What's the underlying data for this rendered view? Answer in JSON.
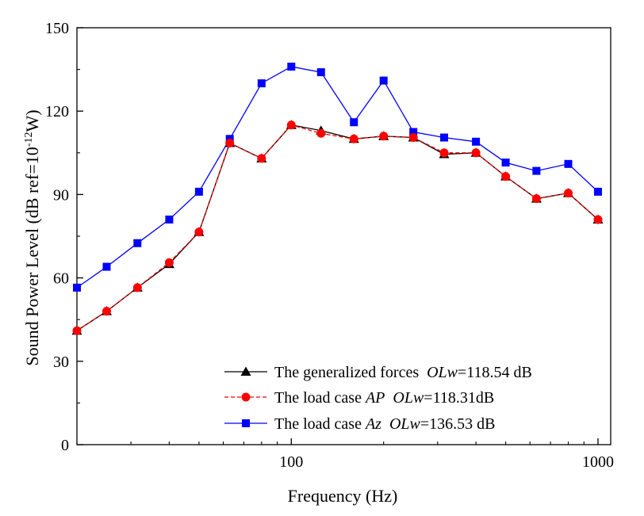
{
  "chart_data": {
    "type": "line",
    "xlabel": "Frequency (Hz)",
    "ylabel_main": "Sound Power Level (dB ref=10",
    "ylabel_exp": "-12",
    "ylabel_tail": "W)",
    "x_scale": "log",
    "xlim": [
      20,
      1100
    ],
    "ylim": [
      0,
      150
    ],
    "x_ticks": [
      100,
      1000
    ],
    "x_tick_labels": [
      "100",
      "1000"
    ],
    "y_ticks": [
      0,
      30,
      60,
      90,
      120,
      150
    ],
    "y_tick_labels": [
      "0",
      "30",
      "60",
      "90",
      "120",
      "150"
    ],
    "grid": false,
    "legend_position": "bottom-right",
    "x": [
      20,
      25,
      31.5,
      40,
      50,
      63,
      80,
      100,
      125,
      160,
      200,
      250,
      315,
      400,
      500,
      630,
      800,
      1000
    ],
    "series": [
      {
        "name": "The generalized forces",
        "legend_prefix": "The generalized forces",
        "legend_italic": "OLw",
        "legend_suffix": "=118.54 dB",
        "color": "#000000",
        "marker": "triangle",
        "dash": "solid",
        "values": [
          41,
          48,
          56.5,
          65,
          76.5,
          108.5,
          103,
          115,
          113,
          110,
          111,
          110.5,
          104.5,
          105,
          96.5,
          88.5,
          90.5,
          81
        ]
      },
      {
        "name": "The load case AP",
        "legend_prefix": "The load case ",
        "legend_italic1": "AP",
        "legend_italic": "OLw",
        "legend_suffix": "=118.31dB",
        "color": "#ff0000",
        "marker": "circle",
        "dash": "dashed",
        "values": [
          41,
          48,
          56.5,
          65.5,
          76.5,
          108.5,
          103,
          115,
          112,
          110,
          111,
          110.5,
          105,
          105,
          96.5,
          88.5,
          90.5,
          81
        ]
      },
      {
        "name": "The load case Az",
        "legend_prefix": "The load case ",
        "legend_italic1": "Az",
        "legend_italic": "OLw",
        "legend_suffix": "=136.53 dB",
        "color": "#0000ff",
        "marker": "square",
        "dash": "solid",
        "values": [
          56.5,
          64,
          72.5,
          81,
          91,
          110,
          130,
          136,
          134,
          116,
          131,
          112.5,
          110.5,
          109,
          101.5,
          98.5,
          101,
          91
        ]
      }
    ]
  }
}
